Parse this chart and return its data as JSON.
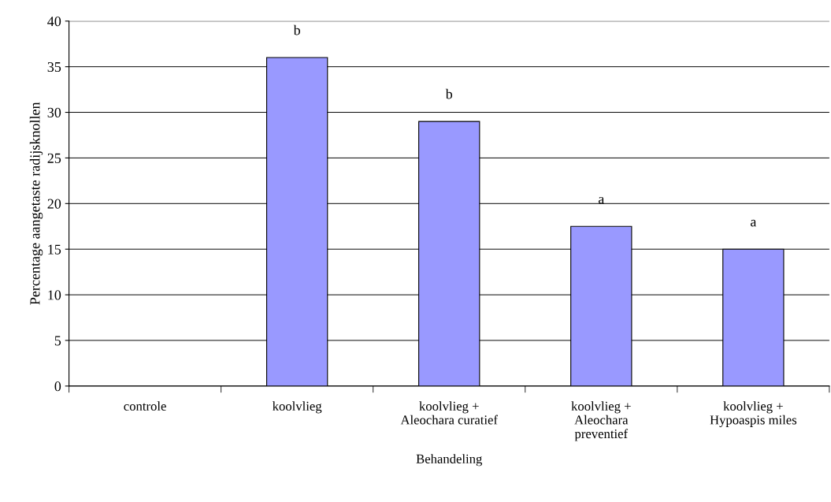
{
  "chart_data": {
    "type": "bar",
    "categories": [
      "controle",
      "koolvlieg",
      "koolvlieg +\nAleochara curatief",
      "koolvlieg +\nAleochara\npreventief",
      "koolvlieg +\nHypoaspis miles"
    ],
    "values": [
      0,
      36,
      29,
      17.5,
      15
    ],
    "color": "#9999ff",
    "xlabel": "Behandeling",
    "ylabel": "Percentage aangetaste radijsknollen",
    "value_labels": [
      null,
      "b",
      "b",
      "a",
      "a"
    ],
    "ylim": [
      0,
      40
    ],
    "yticks": [
      0,
      5,
      10,
      15,
      20,
      25,
      30,
      35,
      40
    ],
    "grid": "y"
  }
}
